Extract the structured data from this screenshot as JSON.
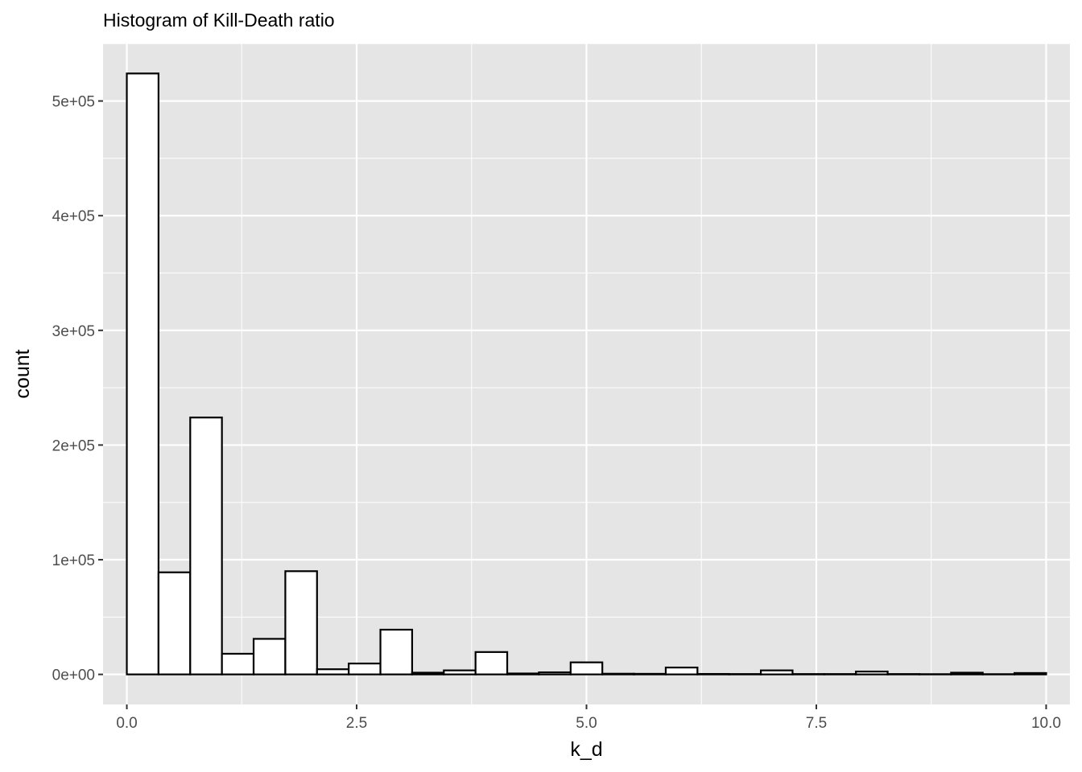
{
  "chart_data": {
    "type": "bar",
    "title": "Histogram of Kill-Death ratio",
    "xlabel": "k_d",
    "ylabel": "count",
    "xlim": [
      -0.2586,
      10.2586
    ],
    "ylim": [
      -26200,
      550200
    ],
    "x_ticks": [
      0,
      2.5,
      5,
      7.5,
      10
    ],
    "x_tick_labels": [
      "0.0",
      "2.5",
      "5.0",
      "7.5",
      "10.0"
    ],
    "y_ticks": [
      0,
      100000,
      200000,
      300000,
      400000,
      500000
    ],
    "y_tick_labels": [
      "0e+00",
      "1e+05",
      "2e+05",
      "3e+05",
      "4e+05",
      "5e+05"
    ],
    "bin_width": 0.3448,
    "bin_starts": [
      0,
      0.3448,
      0.6897,
      1.0345,
      1.3793,
      1.7241,
      2.069,
      2.4138,
      2.7586,
      3.1034,
      3.4483,
      3.7931,
      4.1379,
      4.4828,
      4.8276,
      5.1724,
      5.5172,
      5.8621,
      6.2069,
      6.5517,
      6.8966,
      7.2414,
      7.5862,
      7.931,
      8.2759,
      8.6207,
      8.9655,
      9.3103,
      9.6552
    ],
    "values": [
      524000,
      89000,
      224000,
      18000,
      31000,
      90000,
      4500,
      9500,
      39000,
      1500,
      3500,
      19500,
      800,
      1800,
      10500,
      600,
      500,
      6000,
      400,
      300,
      3500,
      300,
      300,
      2500,
      300,
      200,
      1500,
      200,
      1200
    ],
    "grid": true,
    "panel_background": "#e5e5e5",
    "grid_color": "#ffffff",
    "bar_fill": "#ffffff",
    "bar_stroke": "#000000"
  }
}
